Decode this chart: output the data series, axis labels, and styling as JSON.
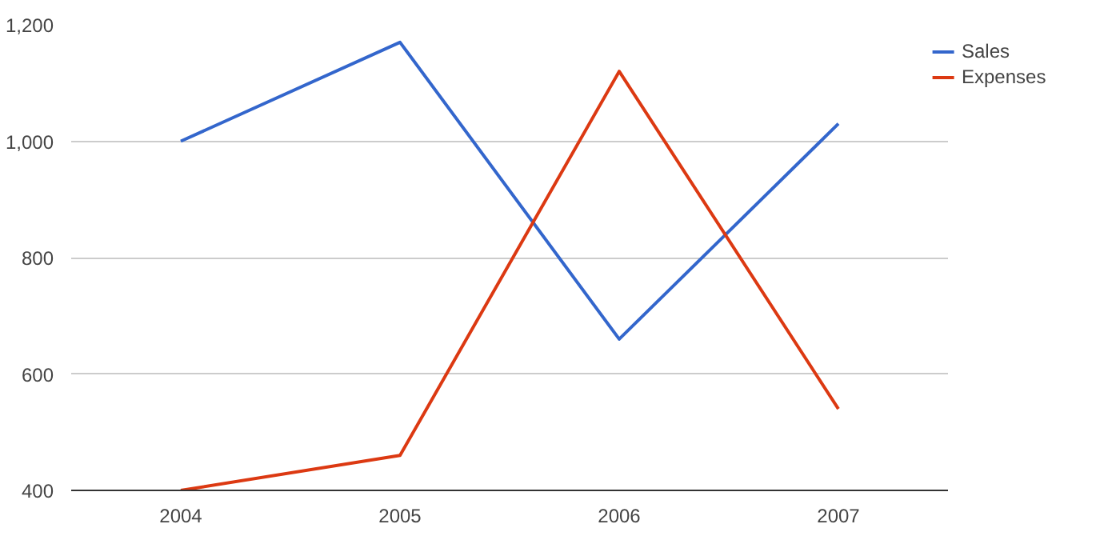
{
  "chart_data": {
    "type": "line",
    "categories": [
      "2004",
      "2005",
      "2006",
      "2007"
    ],
    "series": [
      {
        "name": "Sales",
        "color": "#3366cc",
        "values": [
          1000,
          1170,
          660,
          1030
        ]
      },
      {
        "name": "Expenses",
        "color": "#dc3912",
        "values": [
          400,
          460,
          1120,
          540
        ]
      }
    ],
    "ylim": [
      400,
      1200
    ],
    "yticks": [
      400,
      600,
      800,
      {
        "value": 1000,
        "label": "1,000"
      },
      {
        "value": 1200,
        "label": "1,200"
      }
    ],
    "grid": "y",
    "legend": "right",
    "line_style": "solid",
    "marker": "none"
  }
}
